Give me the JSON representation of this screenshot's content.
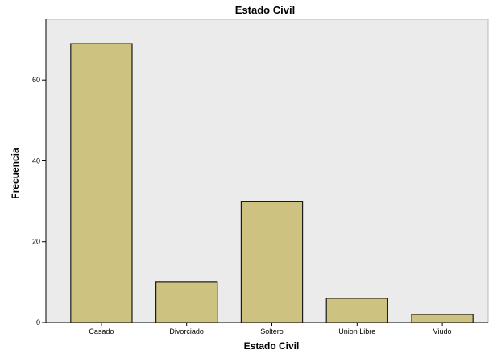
{
  "chart_data": {
    "type": "bar",
    "title": "Estado Civil",
    "xlabel": "Estado Civil",
    "ylabel": "Frecuencia",
    "categories": [
      "Casado",
      "Divorciado",
      "Soltero",
      "Union Libre",
      "Viudo"
    ],
    "values": [
      69,
      10,
      30,
      6,
      2
    ],
    "ylim": [
      0,
      75
    ],
    "yticks": [
      0,
      20,
      40,
      60
    ],
    "grid": false,
    "legend": "none"
  },
  "colors": {
    "bar_fill": "#cdc27f",
    "bar_stroke": "#1a1a1a",
    "plot_bg": "#ebebeb",
    "axis": "#000000"
  }
}
